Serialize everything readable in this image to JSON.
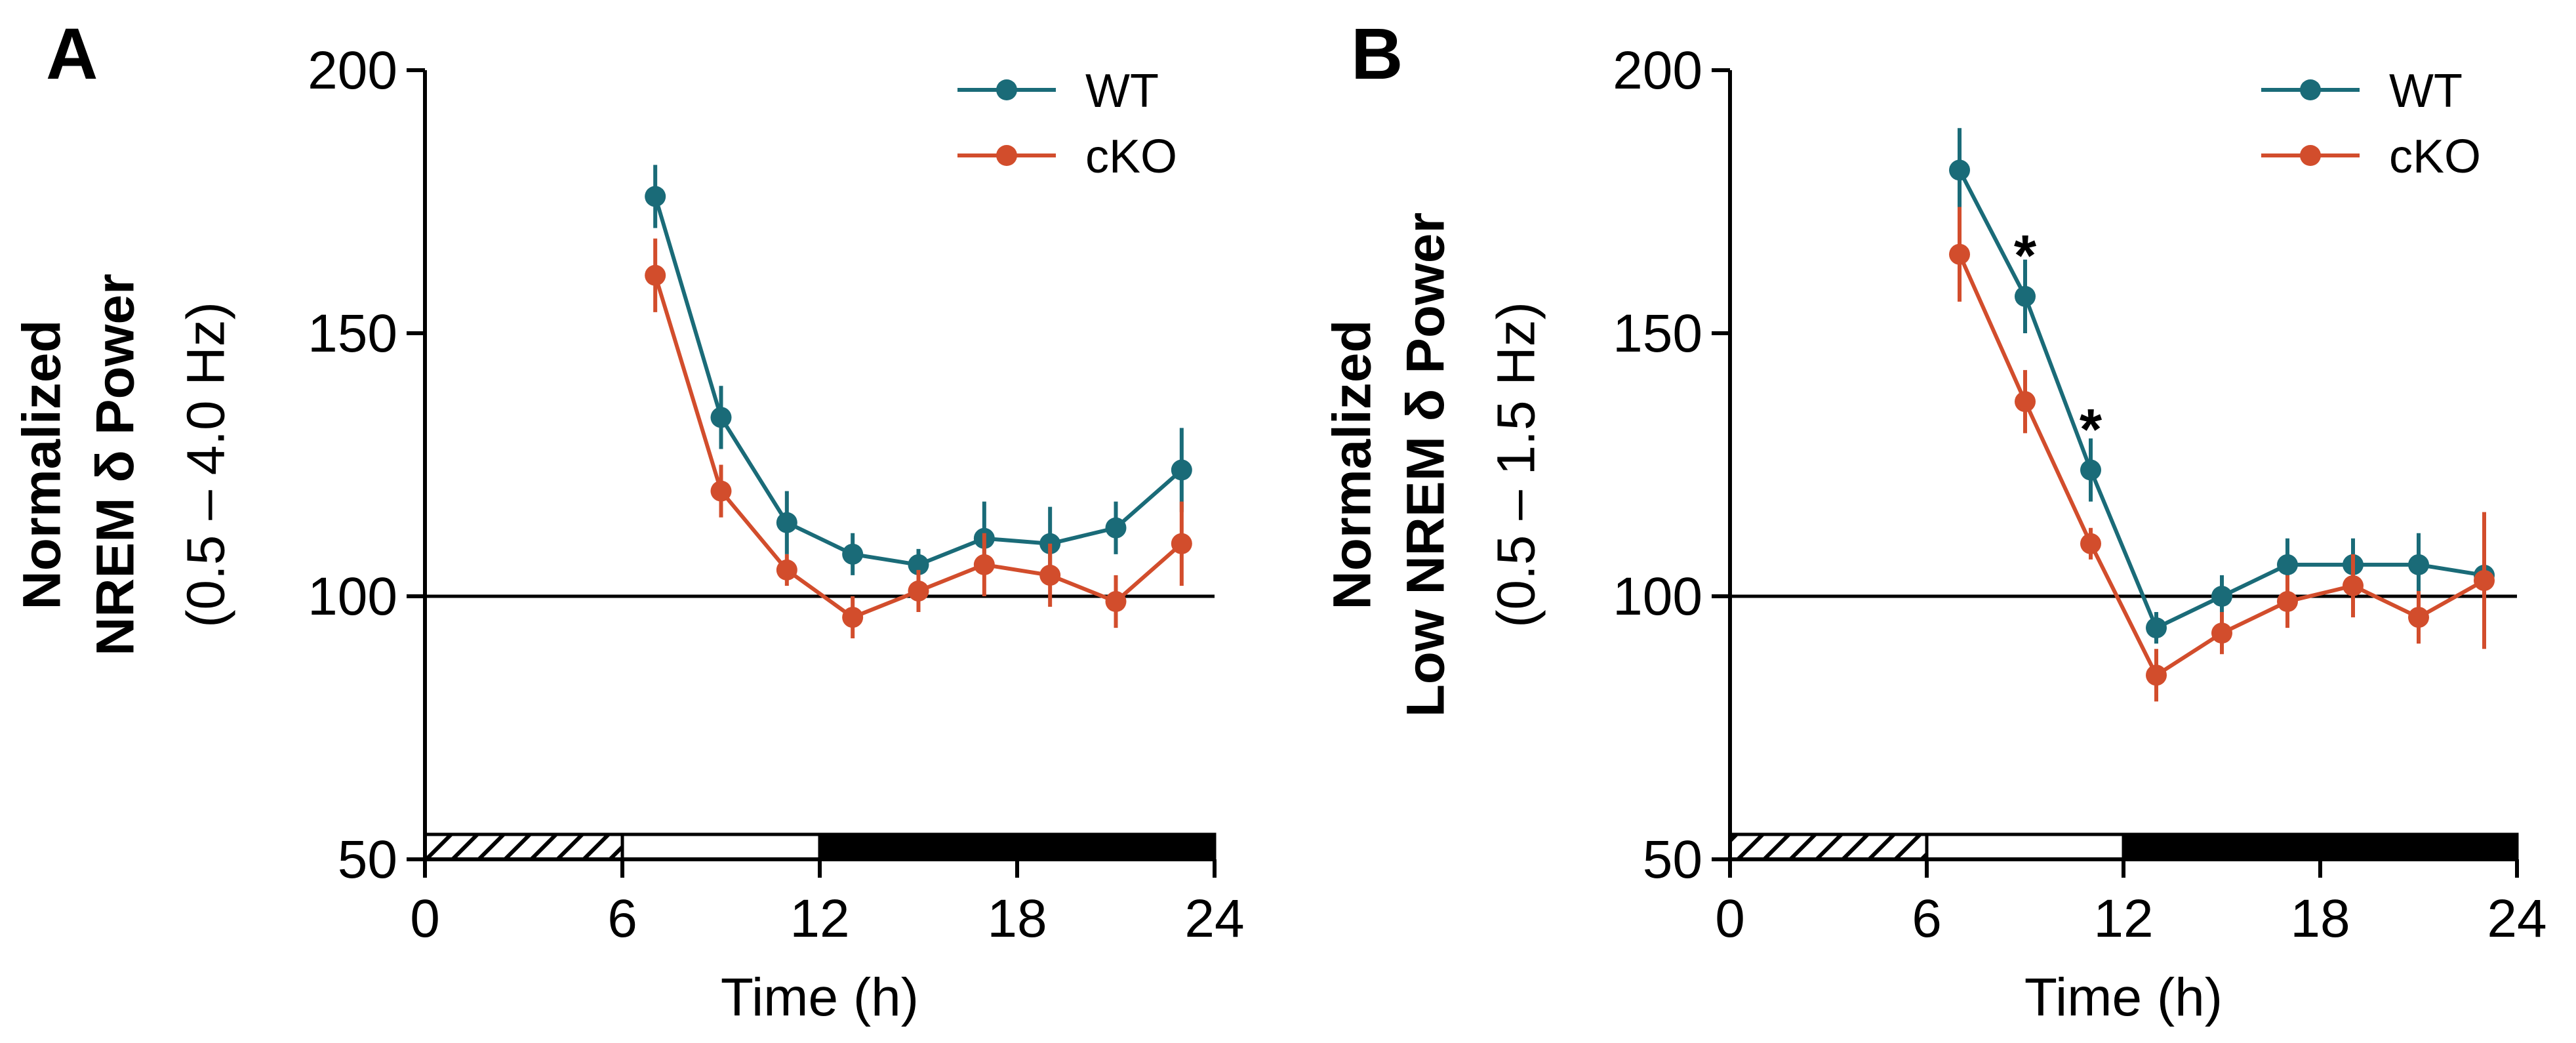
{
  "colors": {
    "wt": "#1a6b78",
    "cko": "#d24d2c",
    "axis": "#000000"
  },
  "chart_data": [
    {
      "id": "A",
      "type": "line",
      "panel_label": "A",
      "title": "",
      "xlabel": "Time (h)",
      "ylabel_lines": [
        "Normalized",
        "NREM δ Power",
        "(0.5 – 4.0 Hz)"
      ],
      "xlim": [
        0,
        24
      ],
      "ylim": [
        50,
        200
      ],
      "xticks": [
        0,
        6,
        12,
        18,
        24
      ],
      "yticks": [
        50,
        100,
        150,
        200
      ],
      "reference_line": 100,
      "light_dark_bar": [
        {
          "from": 0,
          "to": 6,
          "style": "hatched"
        },
        {
          "from": 6,
          "to": 12,
          "style": "light"
        },
        {
          "from": 12,
          "to": 24,
          "style": "dark"
        }
      ],
      "legend_position": "top-right",
      "series": [
        {
          "name": "WT",
          "color_key": "wt",
          "x": [
            7,
            9,
            11,
            13,
            15,
            17,
            19,
            21,
            23
          ],
          "y": [
            176,
            134,
            114,
            108,
            106,
            111,
            110,
            113,
            124
          ],
          "err": [
            6,
            6,
            6,
            4,
            3,
            7,
            7,
            5,
            8
          ]
        },
        {
          "name": "cKO",
          "color_key": "cko",
          "x": [
            7,
            9,
            11,
            13,
            15,
            17,
            19,
            21,
            23
          ],
          "y": [
            161,
            120,
            105,
            96,
            101,
            106,
            104,
            99,
            110
          ],
          "err": [
            7,
            5,
            3,
            4,
            4,
            6,
            6,
            5,
            8
          ]
        }
      ],
      "annotations": []
    },
    {
      "id": "B",
      "type": "line",
      "panel_label": "B",
      "title": "",
      "xlabel": "Time (h)",
      "ylabel_lines": [
        "Normalized",
        "Low NREM δ Power",
        "(0.5 – 1.5 Hz)"
      ],
      "xlim": [
        0,
        24
      ],
      "ylim": [
        50,
        200
      ],
      "xticks": [
        0,
        6,
        12,
        18,
        24
      ],
      "yticks": [
        50,
        100,
        150,
        200
      ],
      "reference_line": 100,
      "light_dark_bar": [
        {
          "from": 0,
          "to": 6,
          "style": "hatched"
        },
        {
          "from": 6,
          "to": 12,
          "style": "light"
        },
        {
          "from": 12,
          "to": 24,
          "style": "dark"
        }
      ],
      "legend_position": "top-right",
      "series": [
        {
          "name": "WT",
          "color_key": "wt",
          "x": [
            7,
            9,
            11,
            13,
            15,
            17,
            19,
            21,
            23
          ],
          "y": [
            181,
            157,
            124,
            94,
            100,
            106,
            106,
            106,
            104
          ],
          "err": [
            8,
            7,
            6,
            3,
            4,
            5,
            5,
            6,
            2
          ]
        },
        {
          "name": "cKO",
          "color_key": "cko",
          "x": [
            7,
            9,
            11,
            13,
            15,
            17,
            19,
            21,
            23
          ],
          "y": [
            165,
            137,
            110,
            85,
            93,
            99,
            102,
            96,
            103
          ],
          "err": [
            9,
            6,
            3,
            5,
            4,
            5,
            6,
            5,
            13
          ]
        }
      ],
      "annotations": [
        {
          "text": "*",
          "x": 9,
          "y": 166
        },
        {
          "text": "*",
          "x": 11,
          "y": 133
        }
      ]
    }
  ]
}
